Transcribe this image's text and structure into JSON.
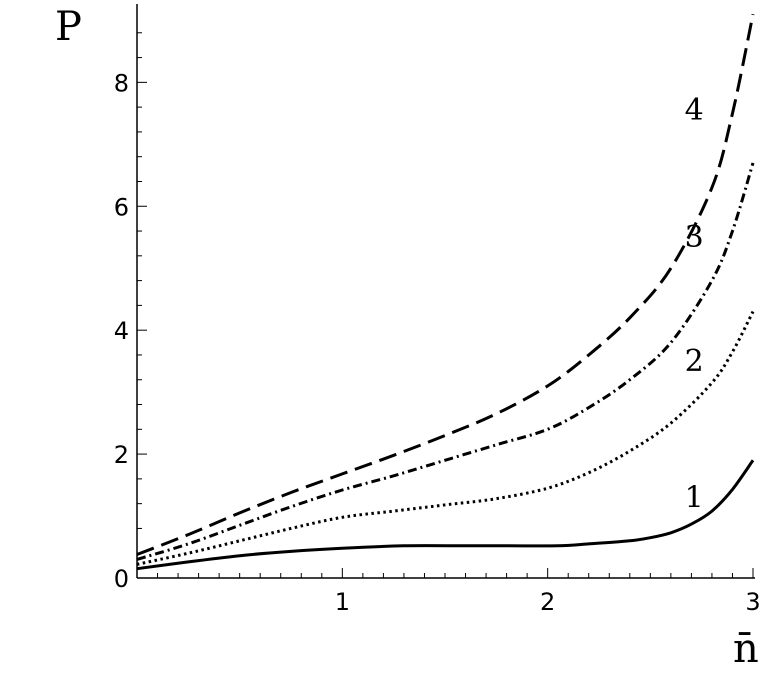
{
  "chart_data": {
    "type": "line",
    "xlabel": "n̄",
    "ylabel": "P",
    "xlim": [
      0,
      3
    ],
    "ylim": [
      0,
      9.2
    ],
    "grid": false,
    "legend": "none",
    "x_ticks": [
      "1",
      "2",
      "3"
    ],
    "y_ticks": [
      "0",
      "2",
      "4",
      "6",
      "8"
    ],
    "series": [
      {
        "label": "1",
        "dash": "solid",
        "x": [
          0,
          0.25,
          0.5,
          0.75,
          1.0,
          1.3,
          1.6,
          1.8,
          2.05,
          2.2,
          2.4,
          2.5,
          2.6,
          2.7,
          2.8,
          2.9,
          3.0
        ],
        "y": [
          0.15,
          0.26,
          0.36,
          0.43,
          0.48,
          0.52,
          0.52,
          0.52,
          0.52,
          0.55,
          0.6,
          0.65,
          0.73,
          0.87,
          1.08,
          1.43,
          1.9
        ]
      },
      {
        "label": "2",
        "dash": "dot",
        "x": [
          0,
          0.25,
          0.5,
          0.75,
          1.0,
          1.25,
          1.5,
          1.75,
          2.0,
          2.2,
          2.4,
          2.6,
          2.8,
          2.9,
          3.0
        ],
        "y": [
          0.22,
          0.4,
          0.6,
          0.8,
          0.98,
          1.08,
          1.18,
          1.28,
          1.45,
          1.7,
          2.05,
          2.5,
          3.15,
          3.65,
          4.3
        ]
      },
      {
        "label": "3",
        "dash": "dashdot",
        "x": [
          0,
          0.25,
          0.5,
          0.75,
          1.0,
          1.25,
          1.5,
          1.75,
          2.0,
          2.2,
          2.4,
          2.6,
          2.8,
          2.9,
          3.0
        ],
        "y": [
          0.3,
          0.55,
          0.85,
          1.15,
          1.42,
          1.65,
          1.9,
          2.15,
          2.4,
          2.75,
          3.2,
          3.8,
          4.8,
          5.6,
          6.7
        ]
      },
      {
        "label": "4",
        "dash": "dash",
        "x": [
          0,
          0.25,
          0.5,
          0.75,
          1.0,
          1.25,
          1.5,
          1.75,
          2.0,
          2.2,
          2.4,
          2.6,
          2.8,
          2.9,
          3.0
        ],
        "y": [
          0.38,
          0.7,
          1.05,
          1.38,
          1.68,
          1.98,
          2.3,
          2.65,
          3.1,
          3.6,
          4.2,
          5.0,
          6.3,
          7.5,
          9.1
        ]
      }
    ]
  }
}
